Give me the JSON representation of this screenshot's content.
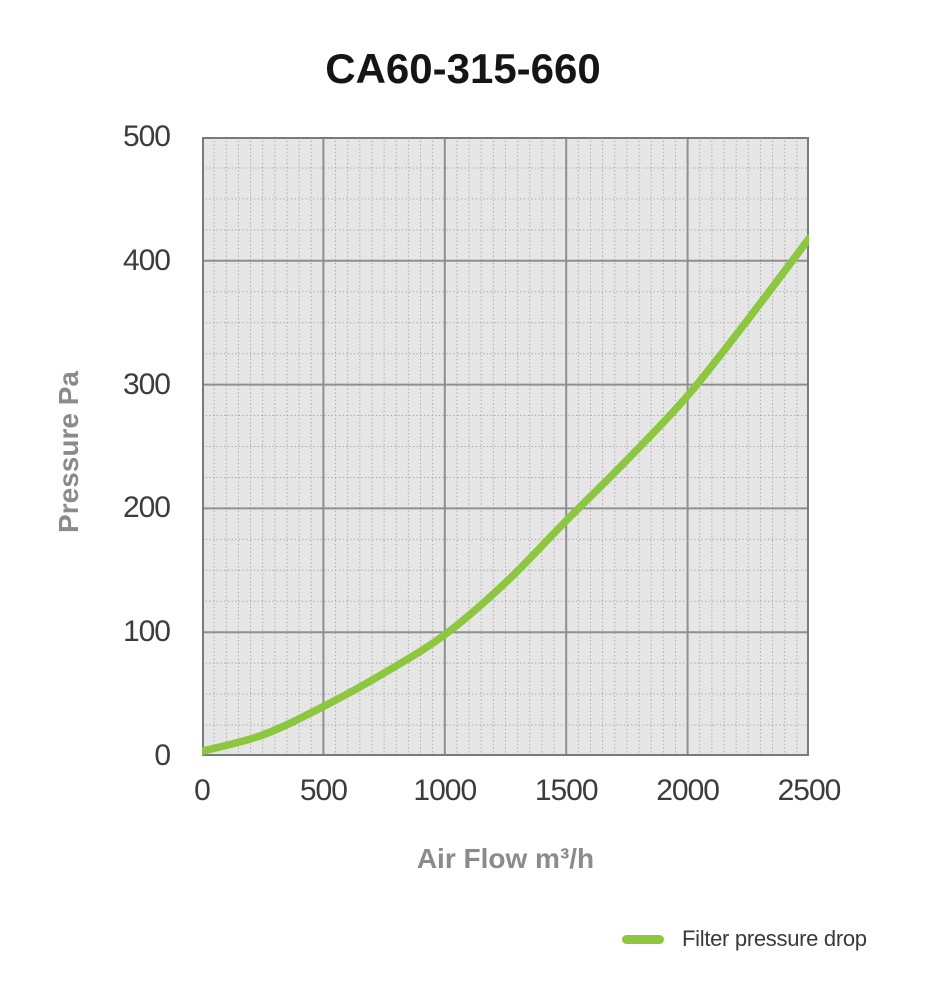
{
  "title": "CA60-315-660",
  "colors": {
    "curve": "#8DC63F",
    "plot_bg": "#e6e6e6",
    "grid_major": "#8f8f8f",
    "grid_minor": "#a6a6a6",
    "border": "#7a7a7a",
    "tick_label": "#3c3c3c",
    "axis_title": "#8b8b8b",
    "title_text": "#151515",
    "legend_text": "#3a3a3a"
  },
  "chart_data": {
    "type": "line",
    "title": "CA60-315-660",
    "xlabel": "Air Flow m³/h",
    "ylabel": "Pressure Pa",
    "xlim": [
      0,
      2500
    ],
    "ylim": [
      0,
      500
    ],
    "x_ticks": [
      0,
      500,
      1000,
      1500,
      2000,
      2500
    ],
    "y_ticks": [
      0,
      100,
      200,
      300,
      400,
      500
    ],
    "x_minor_step": 50,
    "y_minor_step": 25,
    "grid": "major solid + minor dotted",
    "plot_background": "light gray",
    "legend_position": "bottom-right",
    "series": [
      {
        "name": "Filter pressure drop",
        "color": "#8DC63F",
        "x": [
          0,
          250,
          500,
          750,
          1000,
          1250,
          1500,
          1750,
          2000,
          2250,
          2500
        ],
        "y": [
          0,
          17,
          40,
          67,
          98,
          140,
          190,
          239,
          291,
          353,
          418
        ]
      }
    ]
  }
}
